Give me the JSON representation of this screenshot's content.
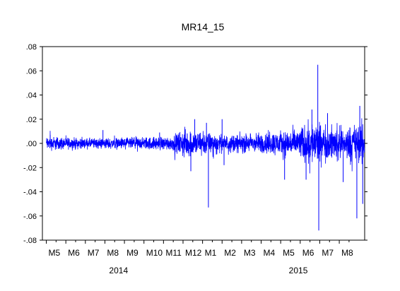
{
  "chart_data": {
    "type": "line",
    "title": "MR14_15",
    "xlabel": "",
    "ylabel": "",
    "ylim": [
      -0.08,
      0.08
    ],
    "yticks": [
      0.08,
      0.06,
      0.04,
      0.02,
      0.0,
      -0.02,
      -0.04,
      -0.06,
      -0.08
    ],
    "ytick_labels": [
      ".08",
      ".06",
      ".04",
      ".02",
      ".00",
      "-.02",
      "-.04",
      "-.06",
      "-.08"
    ],
    "x_month_ticks": [
      "M5",
      "M6",
      "M7",
      "M8",
      "M9",
      "M10",
      "M11",
      "M12",
      "M1",
      "M2",
      "M3",
      "M4",
      "M5",
      "M6",
      "M7",
      "M8"
    ],
    "x_year_labels": [
      {
        "label": "2014",
        "month_index": 3.7
      },
      {
        "label": "2015",
        "month_index": 12.9
      }
    ],
    "x_range_months": [
      -0.2,
      16.3
    ],
    "grid": false,
    "legend": "none",
    "series": [
      {
        "color": "#0000ff",
        "volatility_profile": [
          {
            "month": 0.0,
            "amplitude": 0.0035
          },
          {
            "month": 2.0,
            "amplitude": 0.0025
          },
          {
            "month": 4.0,
            "amplitude": 0.0028
          },
          {
            "month": 6.5,
            "amplitude": 0.0035
          },
          {
            "month": 7.0,
            "amplitude": 0.007
          },
          {
            "month": 8.0,
            "amplitude": 0.006
          },
          {
            "month": 9.0,
            "amplitude": 0.004
          },
          {
            "month": 11.0,
            "amplitude": 0.005
          },
          {
            "month": 12.8,
            "amplitude": 0.007
          },
          {
            "month": 13.6,
            "amplitude": 0.011
          },
          {
            "month": 14.4,
            "amplitude": 0.008
          },
          {
            "month": 15.4,
            "amplitude": 0.008
          },
          {
            "month": 16.3,
            "amplitude": 0.011
          }
        ],
        "spikes": [
          {
            "month": 0.2,
            "value": 0.007
          },
          {
            "month": 2.9,
            "value": 0.011
          },
          {
            "month": 5.8,
            "value": 0.009
          },
          {
            "month": 7.4,
            "value": -0.023
          },
          {
            "month": 7.6,
            "value": 0.02
          },
          {
            "month": 8.3,
            "value": -0.053
          },
          {
            "month": 8.2,
            "value": 0.017
          },
          {
            "month": 9.0,
            "value": 0.02
          },
          {
            "month": 9.1,
            "value": -0.018
          },
          {
            "month": 12.2,
            "value": -0.03
          },
          {
            "month": 13.3,
            "value": -0.03
          },
          {
            "month": 13.6,
            "value": 0.028
          },
          {
            "month": 13.9,
            "value": 0.065
          },
          {
            "month": 13.95,
            "value": -0.072
          },
          {
            "month": 14.4,
            "value": 0.025
          },
          {
            "month": 15.2,
            "value": -0.032
          },
          {
            "month": 15.9,
            "value": -0.062
          },
          {
            "month": 16.05,
            "value": 0.031
          },
          {
            "month": 16.2,
            "value": -0.05
          }
        ]
      }
    ]
  }
}
